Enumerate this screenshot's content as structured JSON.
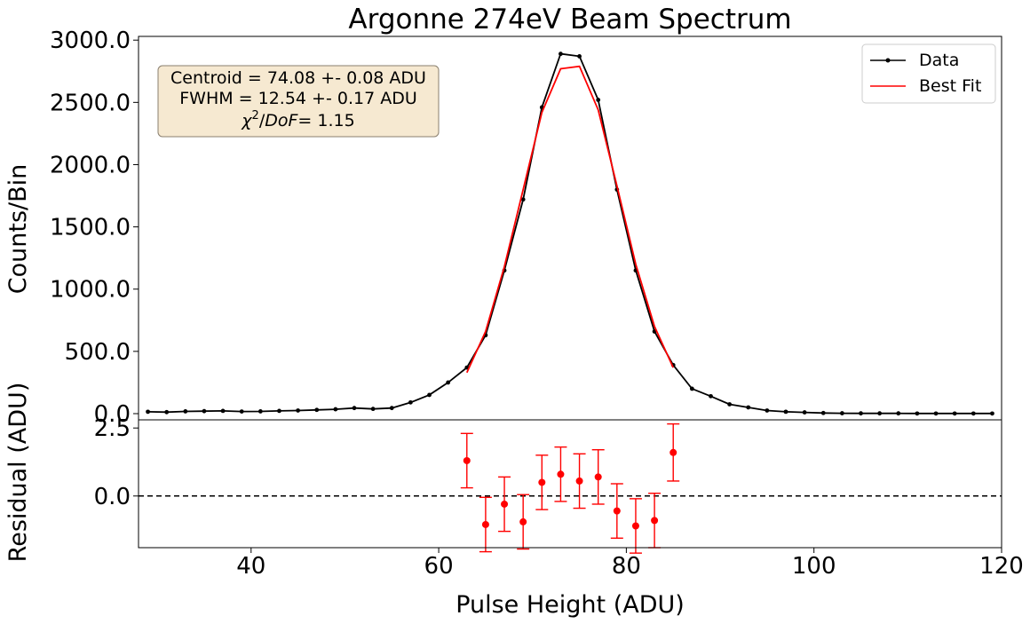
{
  "chart_data": [
    {
      "type": "line",
      "title": "Argonne 274eV Beam Spectrum",
      "xlabel": "",
      "ylabel": "Counts/Bin",
      "xlim": [
        28,
        120
      ],
      "ylim": [
        -50,
        3030
      ],
      "y_ticks": [
        "0.0",
        "500.0",
        "1000.0",
        "1500.0",
        "2000.0",
        "2500.0",
        "3000.0"
      ],
      "y_tick_values": [
        0,
        500,
        1000,
        1500,
        2000,
        2500,
        3000
      ],
      "legend": {
        "position": "top-right",
        "entries": [
          "Data",
          "Best Fit"
        ]
      },
      "annotation": {
        "line1": "Centroid = 74.08 +- 0.08 ADU",
        "line2": "FWHM = 12.54 +- 0.17 ADU",
        "line3_prefix": "χ",
        "line3_sup": "2",
        "line3_mid": "/DoF",
        "line3_suffix": "= 1.15"
      },
      "series": [
        {
          "name": "Data",
          "color": "#000000",
          "x": [
            29,
            31,
            33,
            35,
            37,
            39,
            41,
            43,
            45,
            47,
            49,
            51,
            53,
            55,
            57,
            59,
            61,
            63,
            65,
            67,
            69,
            71,
            73,
            75,
            77,
            79,
            81,
            83,
            85,
            87,
            89,
            91,
            93,
            95,
            97,
            99,
            101,
            103,
            105,
            107,
            109,
            111,
            113,
            115,
            117,
            119
          ],
          "y": [
            15,
            12,
            18,
            20,
            22,
            17,
            18,
            22,
            25,
            30,
            35,
            45,
            38,
            45,
            90,
            150,
            250,
            370,
            630,
            1150,
            1720,
            2460,
            2890,
            2870,
            2520,
            1800,
            1150,
            660,
            390,
            200,
            140,
            75,
            50,
            25,
            15,
            10,
            5,
            3,
            2,
            2,
            2,
            1,
            1,
            1,
            1,
            1
          ]
        },
        {
          "name": "Best Fit",
          "color": "#ff0000",
          "x": [
            63,
            65,
            67,
            69,
            71,
            73,
            75,
            77,
            79,
            81,
            83,
            85
          ],
          "y": [
            330,
            660,
            1180,
            1800,
            2420,
            2770,
            2790,
            2440,
            1830,
            1200,
            700,
            370
          ]
        }
      ]
    },
    {
      "type": "scatter",
      "xlabel": "Pulse Height (ADU)",
      "ylabel": "Residual (ADU)",
      "xlim": [
        28,
        120
      ],
      "ylim": [
        -1.9,
        2.8
      ],
      "x_ticks": [
        "40",
        "60",
        "80",
        "100",
        "120"
      ],
      "x_tick_values": [
        40,
        60,
        80,
        100,
        120
      ],
      "y_ticks": [
        "0.0",
        "2.5"
      ],
      "y_tick_values": [
        0,
        2.5
      ],
      "reference_line": 0,
      "series": [
        {
          "name": "",
          "color": "#ff0000",
          "x": [
            63,
            65,
            67,
            69,
            71,
            73,
            75,
            77,
            79,
            81,
            83,
            85
          ],
          "y": [
            1.3,
            -1.05,
            -0.3,
            -0.95,
            0.5,
            0.8,
            0.55,
            0.7,
            -0.55,
            -1.1,
            -0.9,
            1.6
          ],
          "err": [
            1.0,
            1.0,
            1.0,
            1.0,
            1.0,
            1.0,
            1.0,
            1.0,
            1.0,
            1.0,
            1.0,
            1.05
          ]
        }
      ]
    }
  ]
}
